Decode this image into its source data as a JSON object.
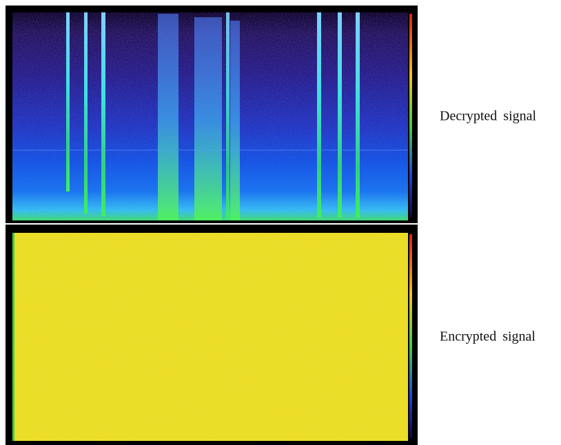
{
  "panels": [
    {
      "label": "Decrypted signal"
    },
    {
      "label": "Encrypted signal"
    }
  ]
}
